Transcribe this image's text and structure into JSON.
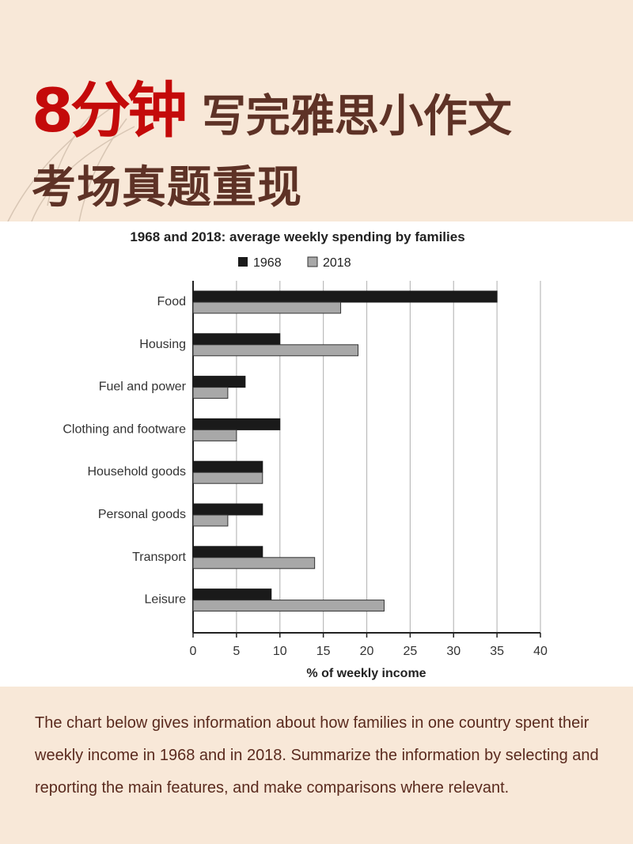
{
  "header": {
    "highlight": "8分钟",
    "title_rest": "写完雅思小作文",
    "subtitle": "考场真题重现"
  },
  "chart_data": {
    "type": "bar",
    "orientation": "horizontal",
    "title": "1968 and 2018: average weekly spending by families",
    "xlabel": "% of weekly income",
    "ylabel": "",
    "categories": [
      "Food",
      "Housing",
      "Fuel and power",
      "Clothing and footware",
      "Household goods",
      "Personal goods",
      "Transport",
      "Leisure"
    ],
    "series": [
      {
        "name": "1968",
        "color": "#1a1a1a",
        "values": [
          35,
          10,
          6,
          10,
          8,
          8,
          8,
          9
        ]
      },
      {
        "name": "2018",
        "color": "#a8a8a8",
        "values": [
          17,
          19,
          4,
          5,
          8,
          4,
          14,
          22
        ]
      }
    ],
    "xlim": [
      0,
      40
    ],
    "xticks": [
      "0",
      "5",
      "10",
      "15",
      "20",
      "25",
      "30",
      "35",
      "40"
    ],
    "grid": true,
    "legend": "top"
  },
  "description": "The chart below gives information about how families in one country spent their weekly income in 1968 and in 2018. Summarize the information by selecting and reporting the main features, and make comparisons where relevant.",
  "colors": {
    "accent": "#c40a0a",
    "text": "#5e3226",
    "background": "#f8e8d8"
  }
}
